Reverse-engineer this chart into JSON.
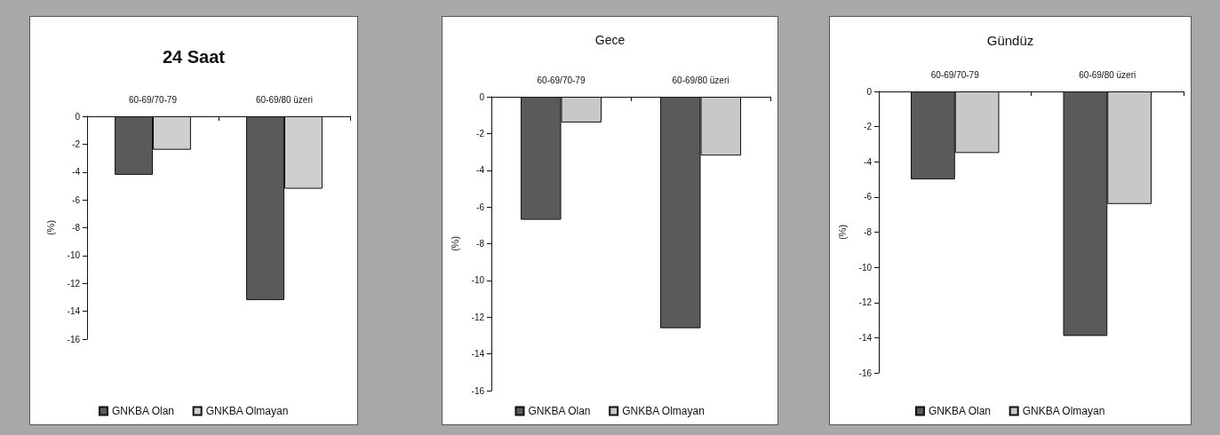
{
  "chart_data": [
    {
      "type": "bar",
      "title": "24 Saat",
      "ylabel": "(%)",
      "categories": [
        "60-69/70-79",
        "60-69/80 üzeri"
      ],
      "series": [
        {
          "name": "GNKBA Olan",
          "color": "#5a5a5a",
          "values": [
            -4.2,
            -13.2
          ]
        },
        {
          "name": "GNKBA Olmayan",
          "color": "#cfcfcf",
          "values": [
            -2.4,
            -5.2
          ]
        }
      ],
      "ylim": [
        -16,
        0
      ],
      "yticks": [
        0,
        -2,
        -4,
        -6,
        -8,
        -10,
        -12,
        -14,
        -16
      ],
      "grid": false,
      "legend": "bottom"
    },
    {
      "type": "bar",
      "title": "Gece",
      "ylabel": "(%)",
      "categories": [
        "60-69/70-79",
        "60-69/80 üzeri"
      ],
      "series": [
        {
          "name": "GNKBA Olan",
          "color": "#5a5a5a",
          "values": [
            -6.7,
            -12.6
          ]
        },
        {
          "name": "GNKBA Olmayan",
          "color": "#c8c8c8",
          "values": [
            -1.4,
            -3.2
          ]
        }
      ],
      "ylim": [
        -16,
        0
      ],
      "yticks": [
        0,
        -2,
        -4,
        -6,
        -8,
        -10,
        -12,
        -14,
        -16
      ],
      "grid": false,
      "legend": "bottom"
    },
    {
      "type": "bar",
      "title": "Gündüz",
      "ylabel": "(%)",
      "categories": [
        "60-69/70-79",
        "60-69/80 üzeri"
      ],
      "series": [
        {
          "name": "GNKBA Olan",
          "color": "#5a5a5a",
          "values": [
            -5.0,
            -13.9
          ]
        },
        {
          "name": "GNKBA Olmayan",
          "color": "#c8c8c8",
          "values": [
            -3.5,
            -6.4
          ]
        }
      ],
      "ylim": [
        -16,
        0
      ],
      "yticks": [
        0,
        -2,
        -4,
        -6,
        -8,
        -10,
        -12,
        -14,
        -16
      ],
      "grid": false,
      "legend": "bottom"
    }
  ]
}
